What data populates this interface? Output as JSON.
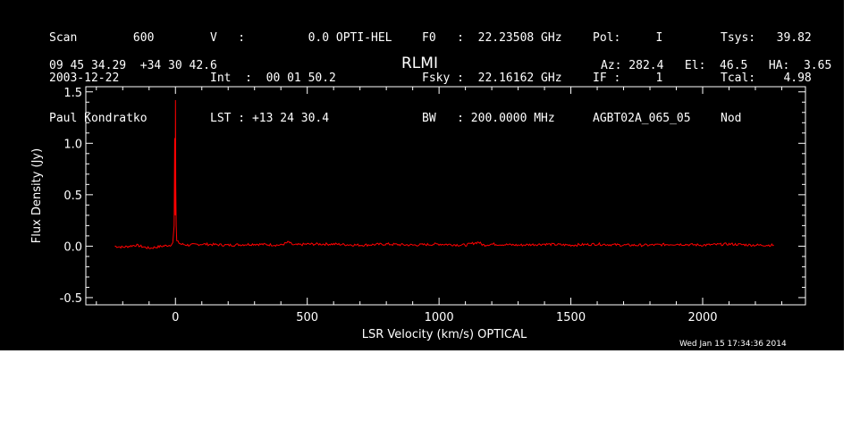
{
  "header": {
    "col1": [
      "Scan        600",
      "2003-12-22",
      "Paul Kondratko"
    ],
    "col2": [
      "V   :         0.0 OPTI-HEL",
      "Int  :  00 01 50.2",
      "LST : +13 24 30.4"
    ],
    "col3": [
      "F0   :  22.23508 GHz",
      "Fsky :  22.16162 GHz",
      "BW   : 200.0000 MHz"
    ],
    "col4": [
      "Pol:     I",
      "IF :     1",
      "AGBT02A_065_05"
    ],
    "col5": [
      "Tsys:   39.82",
      "Tcal:    4.98",
      "Nod"
    ],
    "coords": "09 45 34.29  +34 30 42.6",
    "source": "RLMI",
    "azelha": "Az: 282.4   El:  46.5   HA:  3.65"
  },
  "footer": {
    "timestamp": "Wed Jan 15 17:34:36 2014"
  },
  "colors": {
    "background": "#000000",
    "axes": "#ffffff",
    "spectrum": "#ff0000"
  },
  "chart_data": {
    "type": "line",
    "title": "RLMI",
    "xlabel": "LSR Velocity (km/s) OPTICAL",
    "ylabel": "Flux Density (Jy)",
    "xlim": [
      -340,
      2390
    ],
    "ylim": [
      -0.57,
      1.55
    ],
    "xticks": [
      0,
      500,
      1000,
      1500,
      2000
    ],
    "yticks": [
      -0.5,
      0.0,
      0.5,
      1.0,
      1.5
    ],
    "xtick_labels": [
      "0",
      "500",
      "1000",
      "1500",
      "2000"
    ],
    "ytick_labels": [
      "-0.5",
      "0.0",
      "0.5",
      "1.0",
      "1.5"
    ],
    "series": [
      {
        "color": "#ff0000",
        "x": [
          -230,
          -200,
          -150,
          -100,
          -50,
          -20,
          -10,
          -5,
          -3,
          -1,
          0,
          1,
          3,
          5,
          10,
          20,
          50,
          100,
          200,
          300,
          400,
          430,
          440,
          450,
          500,
          600,
          700,
          800,
          900,
          1000,
          1100,
          1150,
          1160,
          1170,
          1200,
          1300,
          1400,
          1500,
          1600,
          1700,
          1800,
          1900,
          2000,
          2100,
          2200,
          2270
        ],
        "y": [
          0.0,
          -0.01,
          0.01,
          -0.02,
          0.0,
          0.01,
          0.03,
          0.2,
          1.05,
          0.3,
          1.42,
          0.6,
          0.2,
          0.05,
          0.04,
          0.02,
          0.01,
          0.02,
          0.01,
          0.02,
          0.01,
          0.04,
          0.02,
          0.01,
          0.02,
          0.02,
          0.01,
          0.02,
          0.01,
          0.02,
          0.01,
          0.04,
          0.02,
          0.01,
          0.02,
          0.01,
          0.02,
          0.01,
          0.02,
          0.01,
          0.01,
          0.02,
          0.01,
          0.02,
          0.01,
          0.01
        ]
      }
    ],
    "grid": false
  }
}
